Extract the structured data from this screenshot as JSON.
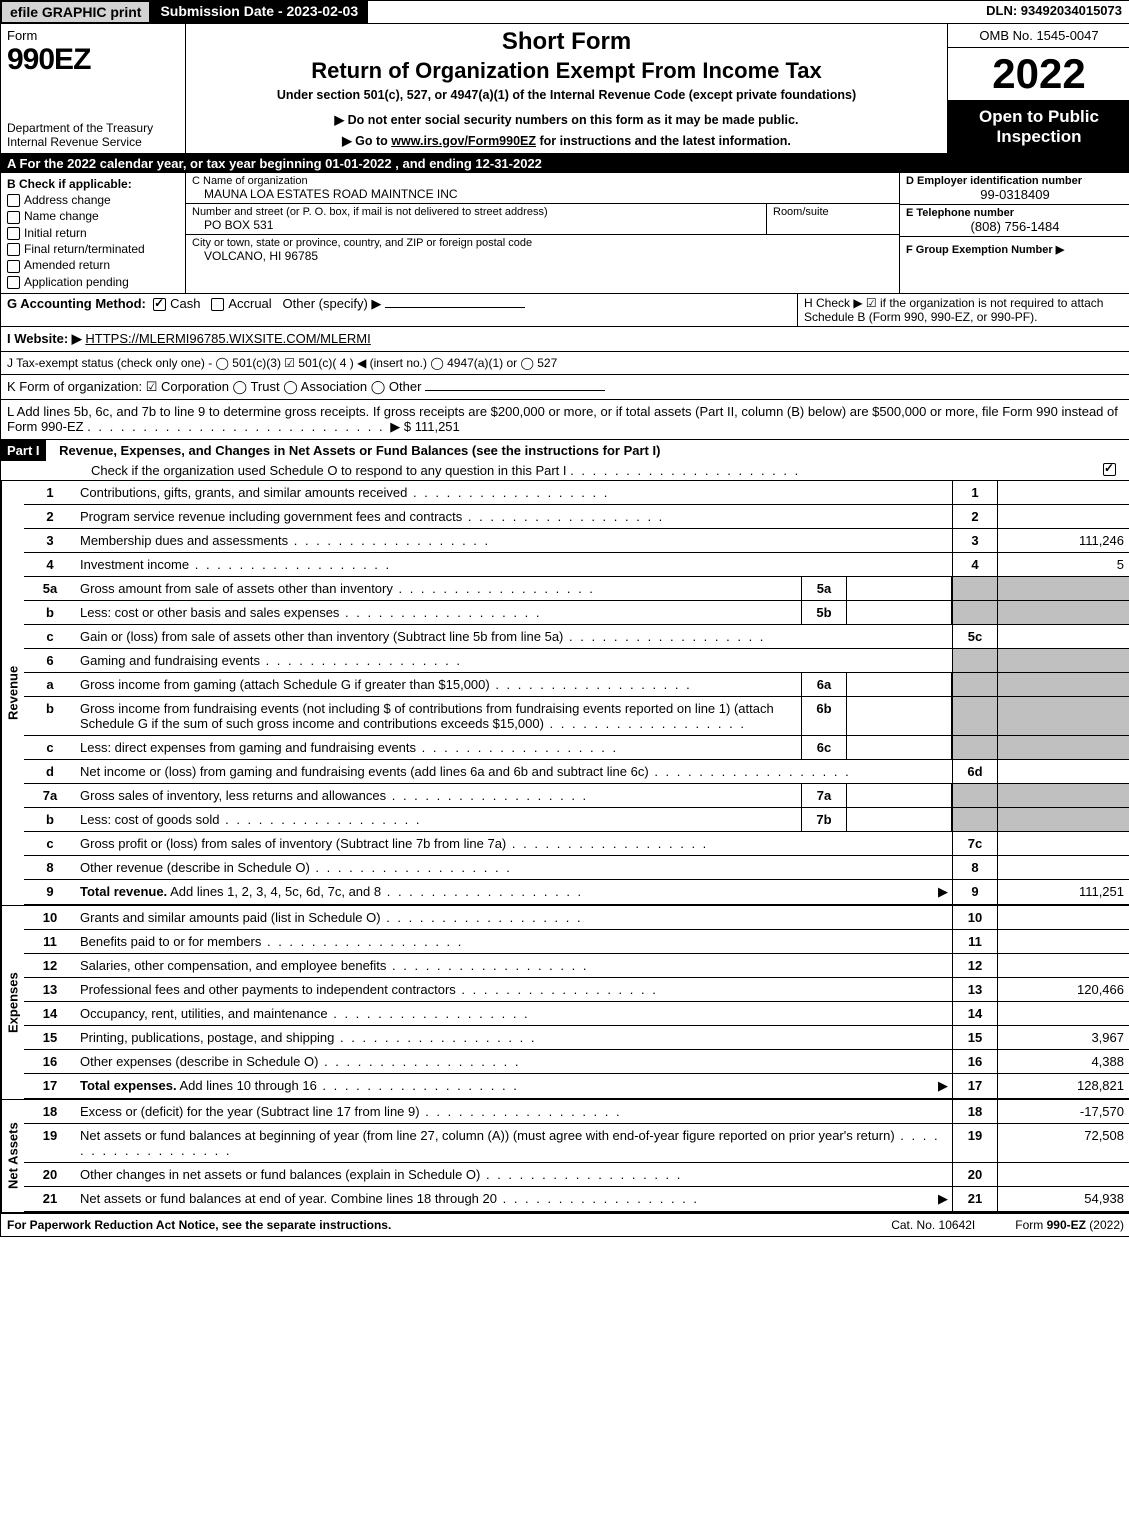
{
  "topbar": {
    "efile": "efile GRAPHIC print",
    "submission": "Submission Date - 2023-02-03",
    "dln": "DLN: 93492034015073"
  },
  "header": {
    "form_label": "Form",
    "form_number": "990EZ",
    "department": "Department of the Treasury\nInternal Revenue Service",
    "title_line1": "Short Form",
    "title_line2": "Return of Organization Exempt From Income Tax",
    "subtitle1": "Under section 501(c), 527, or 4947(a)(1) of the Internal Revenue Code (except private foundations)",
    "subtitle2": "▶ Do not enter social security numbers on this form as it may be made public.",
    "subtitle3": "▶ Go to www.irs.gov/Form990EZ for instructions and the latest information.",
    "omb": "OMB No. 1545-0047",
    "year": "2022",
    "open_to_public": "Open to Public Inspection"
  },
  "lineA": "A  For the 2022 calendar year, or tax year beginning 01-01-2022  , and ending 12-31-2022",
  "sectionB": {
    "label": "B  Check if applicable:",
    "items": [
      {
        "text": "Address change",
        "checked": false
      },
      {
        "text": "Name change",
        "checked": false
      },
      {
        "text": "Initial return",
        "checked": false
      },
      {
        "text": "Final return/terminated",
        "checked": false
      },
      {
        "text": "Amended return",
        "checked": false
      },
      {
        "text": "Application pending",
        "checked": false
      }
    ]
  },
  "sectionC": {
    "name_label": "C Name of organization",
    "name": "MAUNA LOA ESTATES ROAD MAINTNCE INC",
    "street_label": "Number and street (or P. O. box, if mail is not delivered to street address)",
    "street": "PO BOX 531",
    "room_label": "Room/suite",
    "city_label": "City or town, state or province, country, and ZIP or foreign postal code",
    "city": "VOLCANO, HI  96785"
  },
  "sectionD": {
    "ein_label": "D Employer identification number",
    "ein": "99-0318409",
    "tel_label": "E Telephone number",
    "tel": "(808) 756-1484",
    "group_label": "F Group Exemption Number  ▶"
  },
  "lineG": {
    "label": "G Accounting Method:",
    "cash": "Cash",
    "accrual": "Accrual",
    "other": "Other (specify) ▶",
    "cash_checked": true
  },
  "lineH": {
    "text": "H  Check ▶ ☑ if the organization is not required to attach Schedule B (Form 990, 990-EZ, or 990-PF)."
  },
  "lineI": {
    "label": "I Website: ▶",
    "url": "HTTPS://MLERMI96785.WIXSITE.COM/MLERMI"
  },
  "lineJ": "J Tax-exempt status (check only one) -  ◯ 501(c)(3)  ☑ 501(c)( 4 ) ◀ (insert no.)  ◯ 4947(a)(1) or  ◯ 527",
  "lineK": "K Form of organization:  ☑ Corporation   ◯ Trust   ◯ Association   ◯ Other",
  "lineL": {
    "text": "L Add lines 5b, 6c, and 7b to line 9 to determine gross receipts. If gross receipts are $200,000 or more, or if total assets (Part II, column (B) below) are $500,000 or more, file Form 990 instead of Form 990-EZ",
    "amount": "▶ $ 111,251"
  },
  "partI": {
    "header_label": "Part I",
    "header_text": "Revenue, Expenses, and Changes in Net Assets or Fund Balances (see the instructions for Part I)",
    "check_text": "Check if the organization used Schedule O to respond to any question in this Part I",
    "check_checked": true
  },
  "revenue_label": "Revenue",
  "expenses_label": "Expenses",
  "netassets_label": "Net Assets",
  "lines": {
    "1": {
      "num": "1",
      "desc": "Contributions, gifts, grants, and similar amounts received",
      "box": "1",
      "amt": ""
    },
    "2": {
      "num": "2",
      "desc": "Program service revenue including government fees and contracts",
      "box": "2",
      "amt": ""
    },
    "3": {
      "num": "3",
      "desc": "Membership dues and assessments",
      "box": "3",
      "amt": "111,246"
    },
    "4": {
      "num": "4",
      "desc": "Investment income",
      "box": "4",
      "amt": "5"
    },
    "5a": {
      "num": "5a",
      "desc": "Gross amount from sale of assets other than inventory",
      "sub": "5a"
    },
    "5b": {
      "num": "b",
      "desc": "Less: cost or other basis and sales expenses",
      "sub": "5b"
    },
    "5c": {
      "num": "c",
      "desc": "Gain or (loss) from sale of assets other than inventory (Subtract line 5b from line 5a)",
      "box": "5c",
      "amt": ""
    },
    "6": {
      "num": "6",
      "desc": "Gaming and fundraising events"
    },
    "6a": {
      "num": "a",
      "desc": "Gross income from gaming (attach Schedule G if greater than $15,000)",
      "sub": "6a"
    },
    "6b": {
      "num": "b",
      "desc": "Gross income from fundraising events (not including $                      of contributions from fundraising events reported on line 1) (attach Schedule G if the sum of such gross income and contributions exceeds $15,000)",
      "sub": "6b"
    },
    "6c": {
      "num": "c",
      "desc": "Less: direct expenses from gaming and fundraising events",
      "sub": "6c"
    },
    "6d": {
      "num": "d",
      "desc": "Net income or (loss) from gaming and fundraising events (add lines 6a and 6b and subtract line 6c)",
      "box": "6d",
      "amt": ""
    },
    "7a": {
      "num": "7a",
      "desc": "Gross sales of inventory, less returns and allowances",
      "sub": "7a"
    },
    "7b": {
      "num": "b",
      "desc": "Less: cost of goods sold",
      "sub": "7b"
    },
    "7c": {
      "num": "c",
      "desc": "Gross profit or (loss) from sales of inventory (Subtract line 7b from line 7a)",
      "box": "7c",
      "amt": ""
    },
    "8": {
      "num": "8",
      "desc": "Other revenue (describe in Schedule O)",
      "box": "8",
      "amt": ""
    },
    "9": {
      "num": "9",
      "desc": "Total revenue. Add lines 1, 2, 3, 4, 5c, 6d, 7c, and 8",
      "box": "9",
      "amt": "111,251",
      "bold": true,
      "arrow": true
    },
    "10": {
      "num": "10",
      "desc": "Grants and similar amounts paid (list in Schedule O)",
      "box": "10",
      "amt": ""
    },
    "11": {
      "num": "11",
      "desc": "Benefits paid to or for members",
      "box": "11",
      "amt": ""
    },
    "12": {
      "num": "12",
      "desc": "Salaries, other compensation, and employee benefits",
      "box": "12",
      "amt": ""
    },
    "13": {
      "num": "13",
      "desc": "Professional fees and other payments to independent contractors",
      "box": "13",
      "amt": "120,466"
    },
    "14": {
      "num": "14",
      "desc": "Occupancy, rent, utilities, and maintenance",
      "box": "14",
      "amt": ""
    },
    "15": {
      "num": "15",
      "desc": "Printing, publications, postage, and shipping",
      "box": "15",
      "amt": "3,967"
    },
    "16": {
      "num": "16",
      "desc": "Other expenses (describe in Schedule O)",
      "box": "16",
      "amt": "4,388"
    },
    "17": {
      "num": "17",
      "desc": "Total expenses. Add lines 10 through 16",
      "box": "17",
      "amt": "128,821",
      "bold": true,
      "arrow": true
    },
    "18": {
      "num": "18",
      "desc": "Excess or (deficit) for the year (Subtract line 17 from line 9)",
      "box": "18",
      "amt": "-17,570"
    },
    "19": {
      "num": "19",
      "desc": "Net assets or fund balances at beginning of year (from line 27, column (A)) (must agree with end-of-year figure reported on prior year's return)",
      "box": "19",
      "amt": "72,508"
    },
    "20": {
      "num": "20",
      "desc": "Other changes in net assets or fund balances (explain in Schedule O)",
      "box": "20",
      "amt": ""
    },
    "21": {
      "num": "21",
      "desc": "Net assets or fund balances at end of year. Combine lines 18 through 20",
      "box": "21",
      "amt": "54,938",
      "arrow": true
    }
  },
  "footer": {
    "left": "For Paperwork Reduction Act Notice, see the separate instructions.",
    "mid": "Cat. No. 10642I",
    "right_prefix": "Form ",
    "right_form": "990-EZ",
    "right_year": " (2022)"
  },
  "colors": {
    "black": "#000000",
    "grey_btn": "#d3d3d3",
    "grey_fill": "#c0c0c0",
    "white": "#ffffff"
  }
}
